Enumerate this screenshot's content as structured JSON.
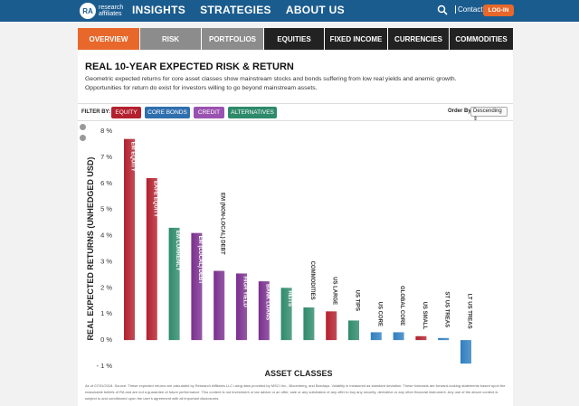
{
  "header": {
    "logo_mark": "RA",
    "logo_text": "research affiliates",
    "nav": [
      "INSIGHTS",
      "STRATEGIES",
      "ABOUT US"
    ],
    "contact": "Contact",
    "login": "LOG-IN"
  },
  "tabs": [
    {
      "label": "OVERVIEW",
      "style": "active"
    },
    {
      "label": "RISK",
      "style": "light"
    },
    {
      "label": "PORTFOLIOS",
      "style": "light"
    },
    {
      "label": "EQUITIES",
      "style": "dark"
    },
    {
      "label": "FIXED INCOME",
      "style": "dark"
    },
    {
      "label": "CURRENCIES",
      "style": "dark"
    },
    {
      "label": "COMMODITIES",
      "style": "dark"
    }
  ],
  "page": {
    "title": "REAL 10-YEAR EXPECTED RISK & RETURN",
    "description": "Geometric expected returns for core asset classes show mainstream stocks and bonds suffering from low real yields and anemic growth. Opportunities for return do exist for investors willing to go beyond mainstream assets."
  },
  "filter": {
    "label": "FILTER BY:",
    "buttons": [
      {
        "label": "EQUITY",
        "color": "#b3202e"
      },
      {
        "label": "CORE BONDS",
        "color": "#2f6fad"
      },
      {
        "label": "CREDIT",
        "color": "#9a52b0"
      },
      {
        "label": "ALTERNATIVES",
        "color": "#2e8a6a"
      }
    ],
    "order_label": "Order By",
    "order_value": "Descending"
  },
  "footnote": "As of 07/31/2018. Source: These expected returns are calculated by Research Affiliates LLC using data provided by MSCI Inc., Bloomberg, and Barclays. Volatility is measured as standard deviation. These forecasts are forward-looking statements based upon the reasonable beliefs of RA and are not a guarantee of future performance. This content is not investment or tax advice or an offer, sale or any solicitation of any offer to buy any security, derivative or any other financial instrument. Any use of the above content is subject to and conditioned upon the user's agreement with all important disclosures,",
  "chart_data": {
    "type": "bar",
    "xlabel": "ASSET CLASSES",
    "ylabel": "REAL EXPECTED RETURNS (UNHEDGED USD)",
    "ylim": [
      -1,
      8
    ],
    "yticks": [
      "8 %",
      "7 %",
      "6 %",
      "5 %",
      "4 %",
      "3 %",
      "2 %",
      "1 %",
      "0 %",
      "- 1 %"
    ],
    "grid": false,
    "categories": [
      "EM EQUITY",
      "EAFE EQUITY",
      "EM CURRENCY",
      "EM (LOCAL) DEBT",
      "EM (NON-LOCAL) DEBT",
      "HIGH YIELD",
      "BANK LOANS",
      "REITS",
      "COMMODITIES",
      "US LARGE",
      "US TIPS",
      "US CORE",
      "GLOBAL CORE",
      "US SMALL",
      "ST US TREAS",
      "LT US TREAS"
    ],
    "values": [
      7.7,
      6.2,
      4.3,
      4.1,
      2.65,
      2.55,
      2.25,
      2.0,
      1.25,
      1.1,
      0.75,
      0.3,
      0.3,
      0.15,
      0.08,
      -0.9
    ],
    "group": [
      "equity",
      "equity",
      "alternatives",
      "credit",
      "credit",
      "credit",
      "credit",
      "alternatives",
      "alternatives",
      "equity",
      "alternatives",
      "core",
      "core",
      "equity",
      "core",
      "core"
    ],
    "label_inside": [
      true,
      true,
      true,
      true,
      false,
      true,
      true,
      true,
      false,
      false,
      false,
      false,
      false,
      false,
      false,
      false
    ],
    "colors": {
      "equity": "#b3202e",
      "core": "#2f7fc0",
      "credit": "#7a2f8f",
      "alternatives": "#2e8a6a"
    }
  }
}
